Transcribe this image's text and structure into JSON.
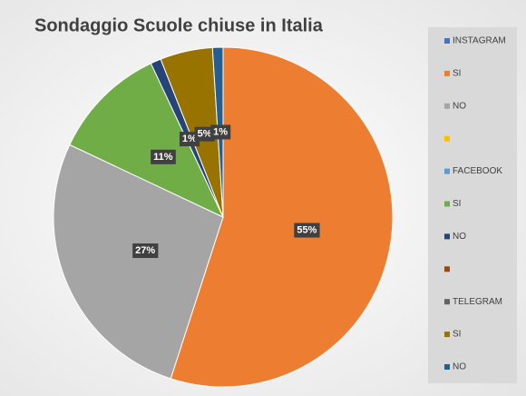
{
  "chart_data": {
    "type": "pie",
    "title": "Sondaggio Scuole chiuse in Italia",
    "categories": [
      "INSTAGRAM",
      "SI",
      "NO",
      null,
      "FACEBOOK",
      "SI",
      "NO",
      null,
      "TELEGRAM",
      "SI",
      "NO"
    ],
    "values": [
      null,
      55,
      27,
      null,
      null,
      11,
      1,
      null,
      null,
      5,
      1
    ],
    "value_labels": [
      null,
      "55%",
      "27%",
      null,
      null,
      "11%",
      "1%",
      null,
      null,
      "5%",
      "1%"
    ],
    "colors": [
      "#4472c4",
      "#ed7d31",
      "#a5a5a5",
      "#ffc000",
      "#5b9bd5",
      "#70ad47",
      "#264478",
      "#9e480e",
      "#636363",
      "#997300",
      "#255e91"
    ],
    "legend": "right"
  }
}
